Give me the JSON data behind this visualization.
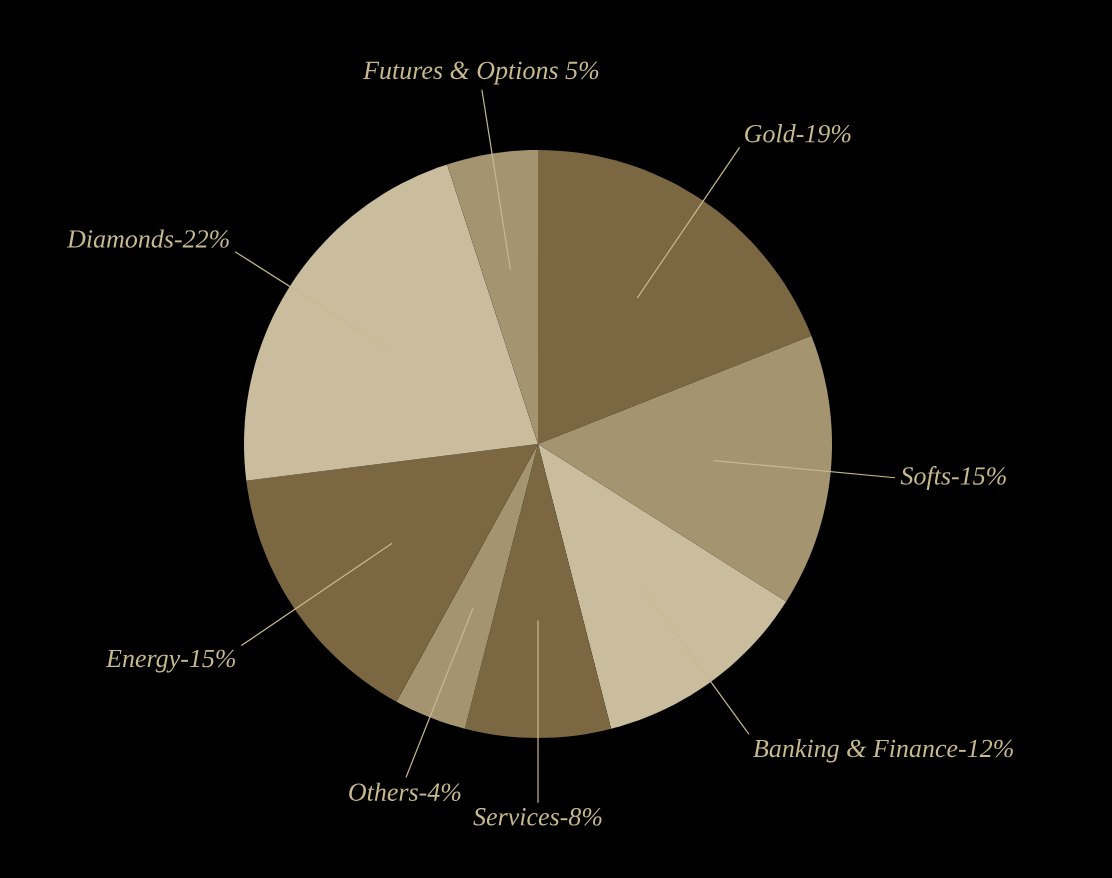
{
  "chart_data": {
    "type": "pie",
    "categories": [
      "Gold-19%",
      "Softs-15%",
      "Banking & Finance-12%",
      "Services-8%",
      "Others-4%",
      "Energy-15%",
      "Diamonds-22%",
      "Futures & Options 5%"
    ],
    "values": [
      19,
      15,
      12,
      8,
      4,
      15,
      22,
      5
    ],
    "colors": [
      "#7b6843",
      "#a59470",
      "#c9bd9e",
      "#7b6843",
      "#a59470",
      "#7b6843",
      "#c9bd9e",
      "#a59470"
    ]
  }
}
